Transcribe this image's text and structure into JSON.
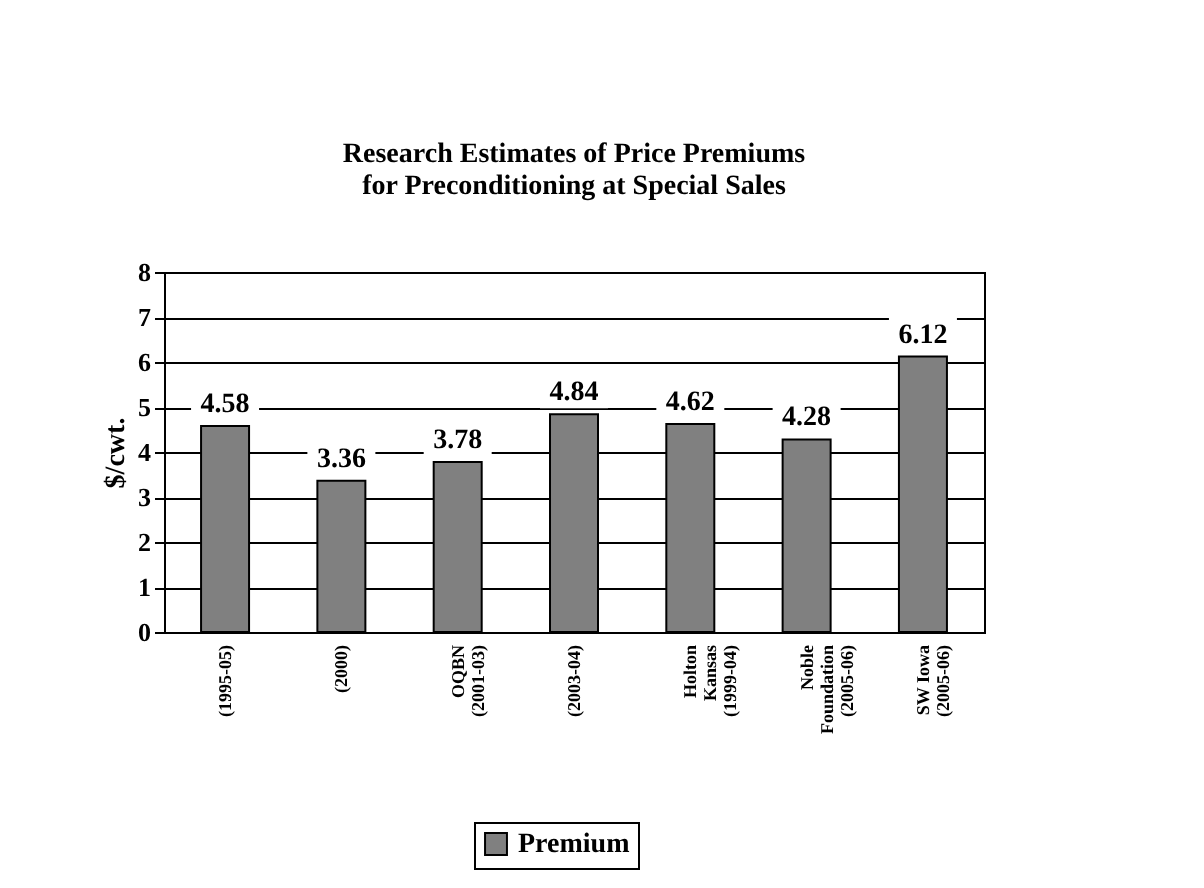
{
  "chart_data": {
    "type": "bar",
    "title": [
      "Research Estimates of Price Premiums",
      "for Preconditioning at Special Sales"
    ],
    "ylabel": "$/cwt.",
    "categories": [
      "(1995-05)",
      "(2000)",
      "OQBN\n(2001-03)",
      "(2003-04)",
      "Holton\nKansas\n(1999-04)",
      "Noble\nFoundation\n(2005-06)",
      "SW Iowa\n(2005-06)"
    ],
    "series": [
      {
        "name": "Premium",
        "color": "#808080",
        "values": [
          4.58,
          3.36,
          3.78,
          4.84,
          4.62,
          4.28,
          6.12
        ]
      }
    ],
    "ylim": [
      0,
      8
    ],
    "yticks": [
      0,
      1,
      2,
      3,
      4,
      5,
      6,
      7,
      8
    ],
    "grid": "y",
    "data_labels": true,
    "legend": "bottom"
  }
}
